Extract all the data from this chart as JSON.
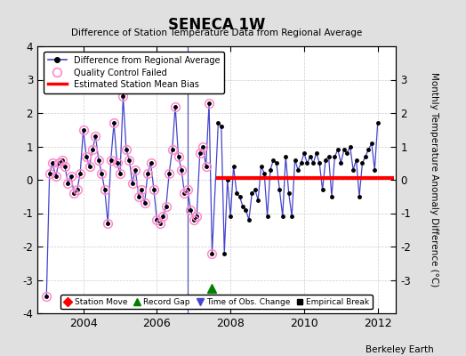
{
  "title": "SENECA 1W",
  "subtitle": "Difference of Station Temperature Data from Regional Average",
  "ylabel": "Monthly Temperature Anomaly Difference (°C)",
  "credit": "Berkeley Earth",
  "ylim": [
    -4,
    4
  ],
  "xlim_start": 2002.75,
  "xlim_end": 2012.5,
  "bias_line_y": 0.05,
  "bias_start": 2007.62,
  "bias_end": 2012.45,
  "fig_bg": "#e0e0e0",
  "plot_bg": "#ffffff",
  "line_color": "#4444cc",
  "times": [
    2003.0,
    2003.083,
    2003.167,
    2003.25,
    2003.333,
    2003.417,
    2003.5,
    2003.583,
    2003.667,
    2003.75,
    2003.833,
    2003.917,
    2004.0,
    2004.083,
    2004.167,
    2004.25,
    2004.333,
    2004.417,
    2004.5,
    2004.583,
    2004.667,
    2004.75,
    2004.833,
    2004.917,
    2005.0,
    2005.083,
    2005.167,
    2005.25,
    2005.333,
    2005.417,
    2005.5,
    2005.583,
    2005.667,
    2005.75,
    2005.833,
    2005.917,
    2006.0,
    2006.083,
    2006.167,
    2006.25,
    2006.333,
    2006.417,
    2006.5,
    2006.583,
    2006.667,
    2006.75,
    2006.833,
    2006.917,
    2007.0,
    2007.083,
    2007.167,
    2007.25,
    2007.333,
    2007.417,
    2007.5,
    2007.667,
    2007.75,
    2007.833,
    2007.917,
    2008.0,
    2008.083,
    2008.167,
    2008.25,
    2008.333,
    2008.417,
    2008.5,
    2008.583,
    2008.667,
    2008.75,
    2008.833,
    2008.917,
    2009.0,
    2009.083,
    2009.167,
    2009.25,
    2009.333,
    2009.417,
    2009.5,
    2009.583,
    2009.667,
    2009.75,
    2009.833,
    2009.917,
    2010.0,
    2010.083,
    2010.167,
    2010.25,
    2010.333,
    2010.417,
    2010.5,
    2010.583,
    2010.667,
    2010.75,
    2010.833,
    2010.917,
    2011.0,
    2011.083,
    2011.167,
    2011.25,
    2011.333,
    2011.417,
    2011.5,
    2011.583,
    2011.667,
    2011.75,
    2011.833,
    2011.917,
    2012.0
  ],
  "values": [
    -3.5,
    0.2,
    0.5,
    0.1,
    0.5,
    0.6,
    0.4,
    -0.1,
    0.1,
    -0.4,
    -0.3,
    0.2,
    1.5,
    0.7,
    0.4,
    0.9,
    1.3,
    0.6,
    0.2,
    -0.3,
    -1.3,
    0.6,
    1.7,
    0.5,
    0.2,
    2.5,
    0.9,
    0.6,
    -0.1,
    0.3,
    -0.5,
    -0.3,
    -0.7,
    0.2,
    0.5,
    -0.3,
    -1.2,
    -1.3,
    -1.1,
    -0.8,
    0.2,
    0.9,
    2.2,
    0.7,
    0.3,
    -0.4,
    -0.3,
    -0.9,
    -1.2,
    -1.1,
    0.8,
    1.0,
    0.4,
    2.3,
    -2.2,
    1.7,
    1.6,
    -2.2,
    0.0,
    -1.1,
    0.4,
    -0.4,
    -0.5,
    -0.8,
    -0.9,
    -1.2,
    -0.4,
    -0.3,
    -0.6,
    0.4,
    0.2,
    -1.1,
    0.3,
    0.6,
    0.5,
    -0.3,
    -1.1,
    0.7,
    -0.4,
    -1.1,
    0.6,
    0.3,
    0.5,
    0.8,
    0.5,
    0.7,
    0.5,
    0.8,
    0.5,
    -0.3,
    0.6,
    0.7,
    -0.5,
    0.7,
    0.9,
    0.5,
    0.9,
    0.8,
    1.0,
    0.3,
    0.6,
    -0.5,
    0.5,
    0.7,
    0.9,
    1.1,
    0.3,
    1.7
  ],
  "qc_failed_count": 55,
  "gap_vertical_x": 2006.833,
  "record_gap_marker_x": 2007.5,
  "record_gap_marker_y": -3.25,
  "xticks": [
    2004,
    2006,
    2008,
    2010,
    2012
  ],
  "yticks_left": [
    -4,
    -3,
    -2,
    -1,
    0,
    1,
    2,
    3,
    4
  ],
  "yticks_right": [
    -3,
    -2,
    -1,
    0,
    1,
    2,
    3
  ]
}
